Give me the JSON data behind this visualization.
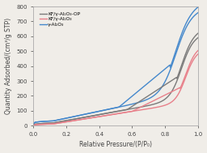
{
  "title": "",
  "xlabel": "Relative Pressure/(P/P₀)",
  "ylabel": "Quantity Adsorbed/(cm³/g STP)",
  "xlim": [
    0.0,
    1.0
  ],
  "ylim": [
    0,
    800
  ],
  "yticks": [
    0,
    100,
    200,
    300,
    400,
    500,
    600,
    700,
    800
  ],
  "xticks": [
    0.0,
    0.2,
    0.4,
    0.6,
    0.8,
    1.0
  ],
  "legend": [
    {
      "label": "KF/γ-Al₂O₃-OP",
      "color": "#7a7a7a"
    },
    {
      "label": "KF/γ-Al₂O₃",
      "color": "#e8808a"
    },
    {
      "label": "γ-Al₂O₃",
      "color": "#4488cc"
    }
  ],
  "background_color": "#f0ede8",
  "line_width": 1.0
}
